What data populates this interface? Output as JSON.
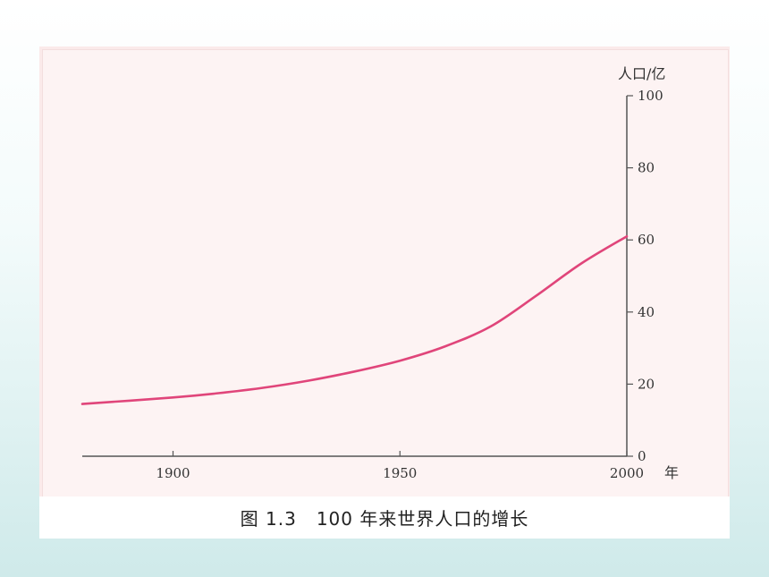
{
  "figure": {
    "caption_number": "图 1.3",
    "caption_text": "100 年来世界人口的增长"
  },
  "chart_data": {
    "type": "line",
    "title": "100 年来世界人口的增长",
    "xlabel": "年",
    "ylabel": "人口/亿",
    "xlim": [
      1880,
      2000
    ],
    "ylim": [
      0,
      100
    ],
    "x_ticks": [
      1900,
      1950,
      2000
    ],
    "y_ticks": [
      0,
      20,
      40,
      60,
      80,
      100
    ],
    "grid": false,
    "line_color": "#e0457a",
    "series": [
      {
        "x": [
          1880,
          1900,
          1910,
          1920,
          1930,
          1940,
          1950,
          1960,
          1970,
          1980,
          1990,
          2000
        ],
        "values": [
          14.5,
          16.3,
          17.5,
          19.0,
          21.0,
          23.5,
          26.5,
          30.5,
          36.0,
          44.5,
          53.5,
          61.0
        ]
      }
    ]
  }
}
